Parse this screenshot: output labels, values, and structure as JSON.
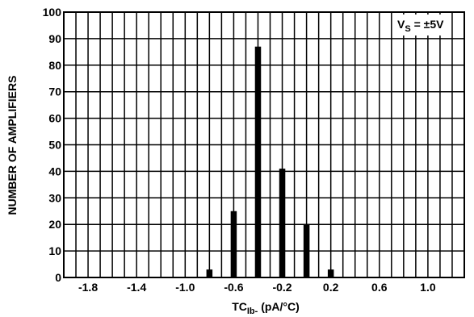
{
  "chart_data": {
    "type": "bar",
    "title": "",
    "xlabel": {
      "main": "TC",
      "sub": "Ib-",
      "unit": " (pA/°C)"
    },
    "ylabel": "NUMBER OF AMPLIFIERS",
    "annotation": {
      "main": "V",
      "sub": "S",
      "rest": " = ±5V"
    },
    "xlim": [
      -2.0,
      1.3
    ],
    "ylim": [
      0,
      100
    ],
    "x_tick_labels": [
      "-1.8",
      "-1.4",
      "-1.0",
      "-0.6",
      "-0.2",
      "0.2",
      "0.6",
      "1.0"
    ],
    "x_tick_values": [
      -1.8,
      -1.4,
      -1.0,
      -0.6,
      -0.2,
      0.2,
      0.6,
      1.0
    ],
    "y_tick_labels": [
      "0",
      "10",
      "20",
      "30",
      "40",
      "50",
      "60",
      "70",
      "80",
      "90",
      "100"
    ],
    "y_tick_values": [
      0,
      10,
      20,
      30,
      40,
      50,
      60,
      70,
      80,
      90,
      100
    ],
    "grid": true,
    "bars": [
      {
        "x": -0.8,
        "value": 3
      },
      {
        "x": -0.6,
        "value": 25
      },
      {
        "x": -0.4,
        "value": 87
      },
      {
        "x": -0.2,
        "value": 41
      },
      {
        "x": 0.0,
        "value": 20
      },
      {
        "x": 0.2,
        "value": 3
      }
    ],
    "bar_color": "#000000"
  }
}
